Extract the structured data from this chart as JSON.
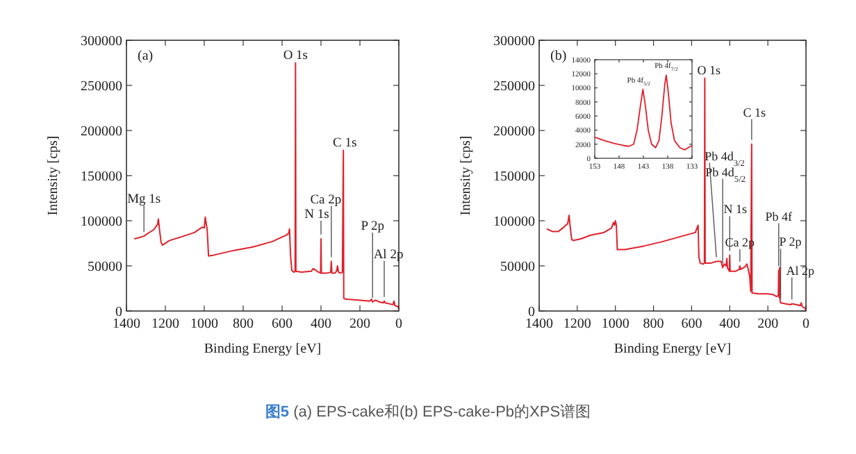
{
  "chart_data": [
    {
      "type": "line",
      "xlabel": "Binding Energy [eV]",
      "ylabel": "Intensity [cps]",
      "xlim": [
        1400,
        0
      ],
      "xticks": [
        1400,
        1200,
        1000,
        800,
        600,
        400,
        200,
        0
      ],
      "ylim": [
        0,
        300000
      ],
      "yticks": [
        0,
        50000,
        100000,
        150000,
        200000,
        250000,
        300000
      ],
      "series": [
        {
          "color": "#e0202a",
          "x": [
            1360,
            1340,
            1310,
            1290,
            1260,
            1240,
            1236,
            1230,
            1222,
            1215,
            1180,
            1120,
            1050,
            1010,
            1000,
            995,
            985,
            978,
            950,
            850,
            750,
            650,
            580,
            566,
            562,
            556,
            550,
            540,
            533,
            531,
            529,
            500,
            450,
            440,
            420,
            402,
            400,
            398,
            370,
            350,
            347,
            344,
            330,
            320,
            315,
            310,
            300,
            290,
            285,
            283,
            270,
            200,
            150,
            140,
            135,
            120,
            100,
            80,
            75,
            70,
            30,
            25,
            20,
            5,
            0
          ],
          "values": [
            80000,
            81000,
            83000,
            86000,
            90000,
            96000,
            102000,
            90000,
            76000,
            73000,
            78000,
            82000,
            87000,
            93000,
            92000,
            104000,
            90000,
            61000,
            62000,
            67000,
            71000,
            77000,
            84000,
            86000,
            91000,
            60000,
            45000,
            43000,
            44000,
            275000,
            44000,
            43000,
            44000,
            47000,
            44000,
            42000,
            80000,
            42000,
            42000,
            43000,
            55000,
            42000,
            42000,
            44000,
            50000,
            43000,
            42000,
            43000,
            178000,
            14000,
            13000,
            12000,
            11000,
            13000,
            10000,
            12000,
            10000,
            9000,
            11000,
            9000,
            7000,
            11000,
            6000,
            5000,
            2000
          ]
        }
      ],
      "annotations": [
        "(a)",
        "图5",
        "(a) EPS-cake和(b) EPS-cake-Pb的XPS谱图",
        {
          "text": "Mg 1s",
          "x": 1310,
          "y": 83000
        },
        {
          "text": "O 1s",
          "x": 531,
          "y": 275000
        },
        {
          "text": "C 1s",
          "x": 285,
          "y": 178000
        },
        {
          "text": "Ca 2p",
          "x": 347,
          "y": 55000
        },
        {
          "text": "N 1s",
          "x": 400,
          "y": 80000
        },
        {
          "text": "P 2p",
          "x": 135,
          "y": 10000
        },
        {
          "text": "Al 2p",
          "x": 75,
          "y": 11000
        }
      ]
    },
    {
      "type": "line",
      "xlabel": "Binding Energy [eV]",
      "ylabel": "Intensity [cps]",
      "xlim": [
        1400,
        0
      ],
      "xticks": [
        1400,
        1200,
        1000,
        800,
        600,
        400,
        200,
        0
      ],
      "ylim": [
        0,
        300000
      ],
      "yticks": [
        0,
        50000,
        100000,
        150000,
        200000,
        250000,
        300000
      ],
      "series": [
        {
          "color": "#e0202a",
          "x": [
            1360,
            1330,
            1300,
            1270,
            1250,
            1243,
            1238,
            1230,
            1222,
            1180,
            1130,
            1060,
            1020,
            1010,
            1005,
            1000,
            995,
            990,
            950,
            850,
            750,
            650,
            580,
            572,
            566,
            562,
            555,
            540,
            533,
            531,
            529,
            500,
            470,
            445,
            437,
            430,
            420,
            415,
            412,
            402,
            400,
            398,
            370,
            350,
            347,
            344,
            320,
            310,
            305,
            295,
            290,
            285,
            283,
            250,
            200,
            170,
            155,
            145,
            143,
            141,
            138.5,
            136,
            133,
            110,
            80,
            74,
            40,
            30,
            25,
            20,
            5,
            0
          ],
          "values": [
            91000,
            88000,
            88000,
            93000,
            97000,
            106000,
            95000,
            80000,
            78000,
            80000,
            84000,
            87000,
            92000,
            98000,
            95000,
            100000,
            95000,
            68000,
            68000,
            72000,
            77000,
            83000,
            87000,
            92000,
            95000,
            60000,
            53000,
            52000,
            53000,
            258000,
            53000,
            53000,
            55000,
            55000,
            48000,
            52000,
            50000,
            58000,
            48000,
            44000,
            62000,
            44000,
            44000,
            46000,
            50000,
            46000,
            49000,
            52000,
            48000,
            38000,
            22000,
            185000,
            20000,
            19000,
            19000,
            18000,
            16000,
            17000,
            45000,
            15000,
            48000,
            12000,
            9000,
            8000,
            7000,
            8000,
            6500,
            6000,
            9000,
            5000,
            3000,
            1000
          ]
        }
      ],
      "annotations": [
        "(b)",
        {
          "text": "O 1s",
          "x": 531,
          "y": 258000
        },
        {
          "text": "C 1s",
          "x": 285,
          "y": 185000
        },
        {
          "text": "Pb 4d$_{3/2}$",
          "x": 470,
          "y": 55000
        },
        {
          "text": "Pb 4d$_{5/2}$",
          "x": 437,
          "y": 48000
        },
        {
          "text": "N 1s",
          "x": 400,
          "y": 62000
        },
        {
          "text": "Ca 2p",
          "x": 347,
          "y": 50000
        },
        {
          "text": "Pb 4f",
          "x": 143,
          "y": 45000
        },
        {
          "text": "P 2p",
          "x": 133,
          "y": 9000
        },
        {
          "text": "Al 2p",
          "x": 74,
          "y": 8000
        }
      ]
    },
    {
      "type": "line",
      "xlim": [
        153,
        133
      ],
      "xticks": [
        153,
        148,
        143,
        138,
        133
      ],
      "ylim": [
        0,
        14000
      ],
      "yticks": [
        0,
        2000,
        4000,
        6000,
        8000,
        10000,
        12000,
        14000
      ],
      "series": [
        {
          "color": "#e0202a",
          "x": [
            153,
            151,
            149,
            147,
            146,
            145,
            144.3,
            143.6,
            143.1,
            142.6,
            142,
            141.3,
            140.5,
            139.8,
            139.2,
            138.6,
            138.3,
            137.9,
            137.3,
            136.6,
            135.5,
            134.5,
            133.8,
            133
          ],
          "values": [
            3000,
            2500,
            2100,
            1800,
            1700,
            2000,
            4000,
            7500,
            9800,
            7500,
            4000,
            2000,
            1500,
            2500,
            6000,
            10500,
            11800,
            9500,
            5000,
            2500,
            1500,
            1200,
            1500,
            1800
          ]
        }
      ],
      "annotations": [
        {
          "text": "Pb 4f$_{5/2}$",
          "x": 143.1,
          "y": 9800
        },
        {
          "text": "Pb 4f$_{7/2}$",
          "x": 138.3,
          "y": 11800
        }
      ]
    }
  ]
}
